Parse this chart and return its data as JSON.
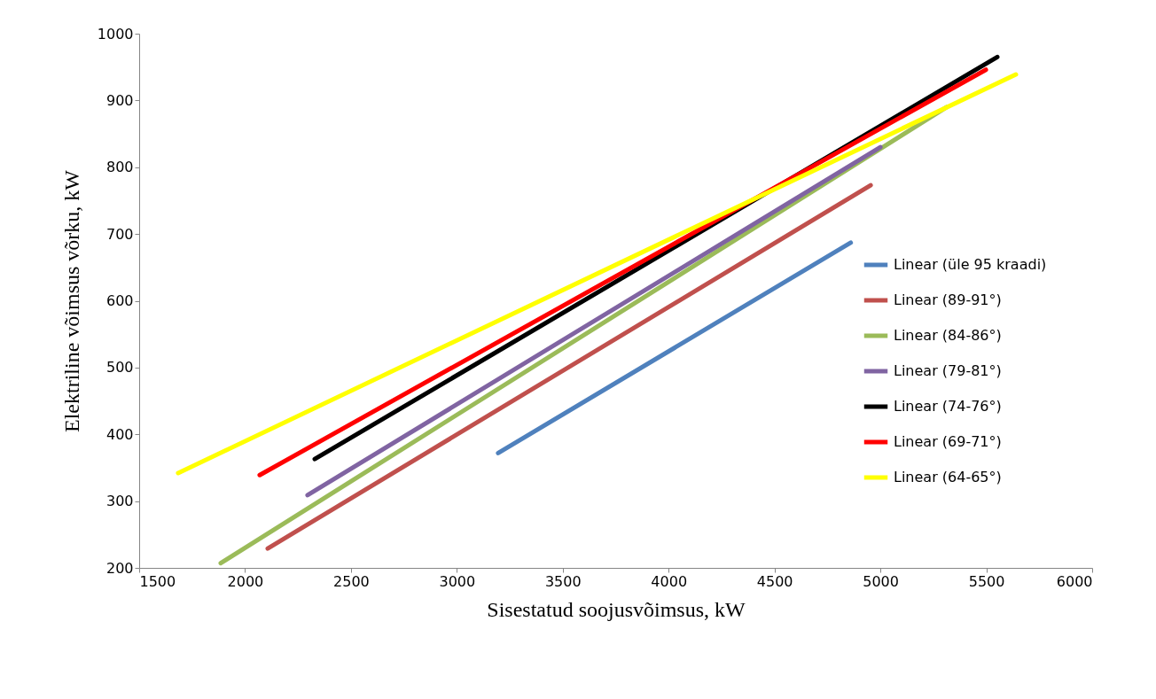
{
  "chart_data": {
    "type": "line",
    "xlabel": "Sisestatud soojusvõimsus, kW",
    "ylabel": "Elektriline võimsus võrku, kW",
    "xlim": [
      1500,
      6000
    ],
    "xticks": [
      1500,
      2000,
      2500,
      3000,
      3500,
      4000,
      4500,
      5000,
      5500,
      6000
    ],
    "ylim": [
      200,
      1000
    ],
    "yticks": [
      200,
      300,
      400,
      500,
      600,
      700,
      800,
      900,
      1000
    ],
    "grid": false,
    "legend": "right",
    "marker": "none",
    "line_style": "solid",
    "series": [
      {
        "name": "Linear (üle 95 kraadi)",
        "color": "#4f81bd",
        "x": [
          3195,
          4860
        ],
        "values": [
          372,
          687
        ]
      },
      {
        "name": "Linear (89-91°)",
        "color": "#c0504d",
        "x": [
          2107,
          4954
        ],
        "values": [
          229,
          773
        ]
      },
      {
        "name": "Linear (84-86°)",
        "color": "#9bbb59",
        "x": [
          1885,
          5313
        ],
        "values": [
          207,
          890
        ]
      },
      {
        "name": "Linear (79-81°)",
        "color": "#8064a2",
        "x": [
          2295,
          5000
        ],
        "values": [
          309,
          830
        ]
      },
      {
        "name": "Linear (74-76°)",
        "color": "#000000",
        "x": [
          2329,
          5552
        ],
        "values": [
          363,
          965
        ]
      },
      {
        "name": "Linear (69-71°)",
        "color": "#ff0000",
        "x": [
          2069,
          5498
        ],
        "values": [
          339,
          946
        ]
      },
      {
        "name": "Linear (64-65°)",
        "color": "#ffff00",
        "x": [
          1684,
          5640
        ],
        "values": [
          342,
          939
        ]
      }
    ]
  }
}
